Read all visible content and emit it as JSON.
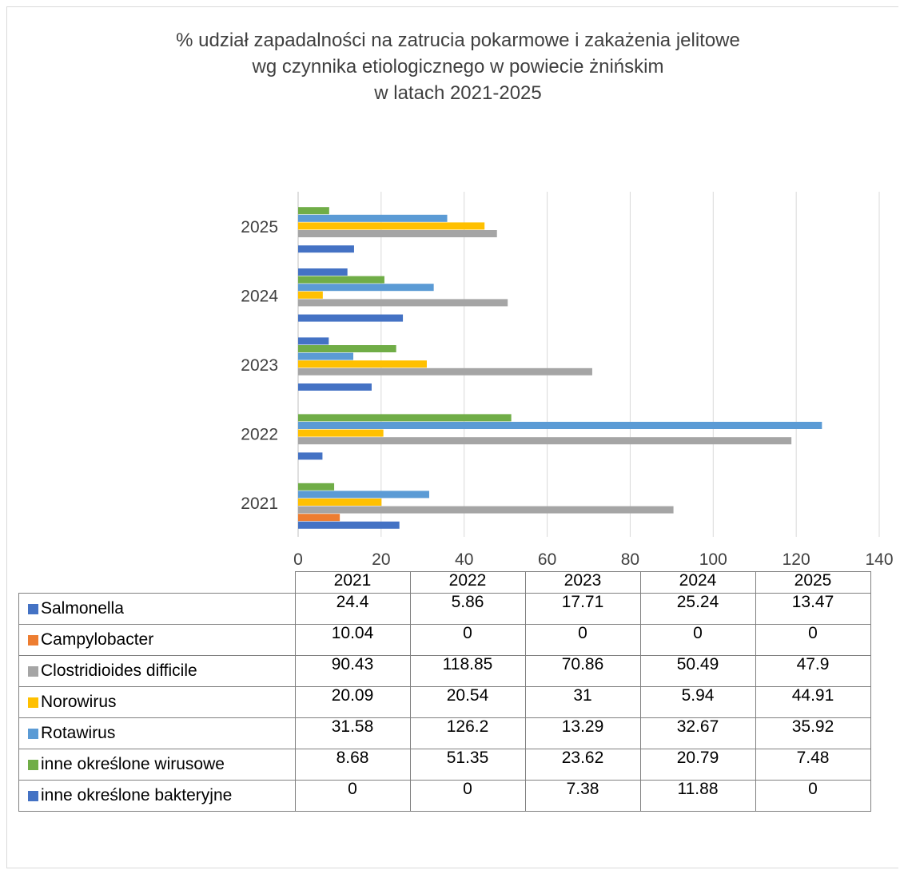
{
  "title_lines": [
    "% udział zapadalności na zatrucia pokarmowe i zakażenia jelitowe",
    "wg czynnika etiologicznego w powiecie żnińskim",
    "w latach 2021-2025"
  ],
  "chart_data": {
    "type": "bar",
    "orientation": "horizontal",
    "categories": [
      "2021",
      "2022",
      "2023",
      "2024",
      "2025"
    ],
    "xlim": [
      0,
      140
    ],
    "xticks": [
      "0",
      "20",
      "40",
      "60",
      "80",
      "100",
      "120",
      "140"
    ],
    "grid": "vertical",
    "legend": "data-table",
    "series": [
      {
        "name": "Salmonella",
        "color": "#4472c4",
        "values": [
          24.4,
          5.86,
          17.71,
          25.24,
          13.47
        ],
        "labels": [
          "24.4",
          "5.86",
          "17.71",
          "25.24",
          "13.47"
        ]
      },
      {
        "name": "Campylobacter",
        "color": "#ed7d31",
        "values": [
          10.04,
          0,
          0,
          0,
          0
        ],
        "labels": [
          "10.04",
          "0",
          "0",
          "0",
          "0"
        ]
      },
      {
        "name": "Clostridioides difficile",
        "color": "#a5a5a5",
        "values": [
          90.43,
          118.85,
          70.86,
          50.49,
          47.9
        ],
        "labels": [
          "90.43",
          "118.85",
          "70.86",
          "50.49",
          "47.9"
        ]
      },
      {
        "name": "Norowirus",
        "color": "#ffc000",
        "values": [
          20.09,
          20.54,
          31,
          5.94,
          44.91
        ],
        "labels": [
          "20.09",
          "20.54",
          "31",
          "5.94",
          "44.91"
        ]
      },
      {
        "name": "Rotawirus",
        "color": "#5b9bd5",
        "values": [
          31.58,
          126.2,
          13.29,
          32.67,
          35.92
        ],
        "labels": [
          "31.58",
          "126.2",
          "13.29",
          "32.67",
          "35.92"
        ]
      },
      {
        "name": "inne określone wirusowe",
        "color": "#70ad47",
        "values": [
          8.68,
          51.35,
          23.62,
          20.79,
          7.48
        ],
        "labels": [
          "8.68",
          "51.35",
          "23.62",
          "20.79",
          "7.48"
        ]
      },
      {
        "name": "inne określone bakteryjne",
        "color": "#4472c4",
        "values": [
          0,
          0,
          7.38,
          11.88,
          0
        ],
        "labels": [
          "0",
          "0",
          "7.38",
          "11.88",
          "0"
        ]
      }
    ]
  }
}
